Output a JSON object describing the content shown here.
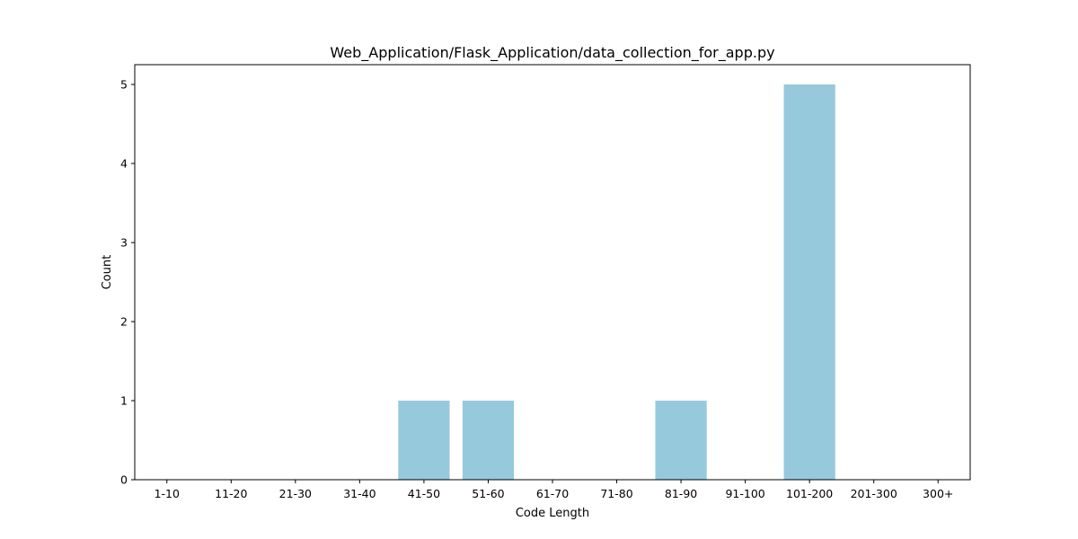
{
  "chart_data": {
    "type": "bar",
    "title": "Web_Application/Flask_Application/data_collection_for_app.py",
    "xlabel": "Code Length",
    "ylabel": "Count",
    "categories": [
      "1-10",
      "11-20",
      "21-30",
      "31-40",
      "41-50",
      "51-60",
      "61-70",
      "71-80",
      "81-90",
      "91-100",
      "101-200",
      "201-300",
      "300+"
    ],
    "values": [
      0,
      0,
      0,
      0,
      1,
      1,
      0,
      0,
      1,
      0,
      5,
      0,
      0
    ],
    "ylim": [
      0,
      5.25
    ],
    "yticks": [
      0,
      1,
      2,
      3,
      4,
      5
    ],
    "bar_color": "#96c9dc",
    "grid": false,
    "legend": "none"
  }
}
